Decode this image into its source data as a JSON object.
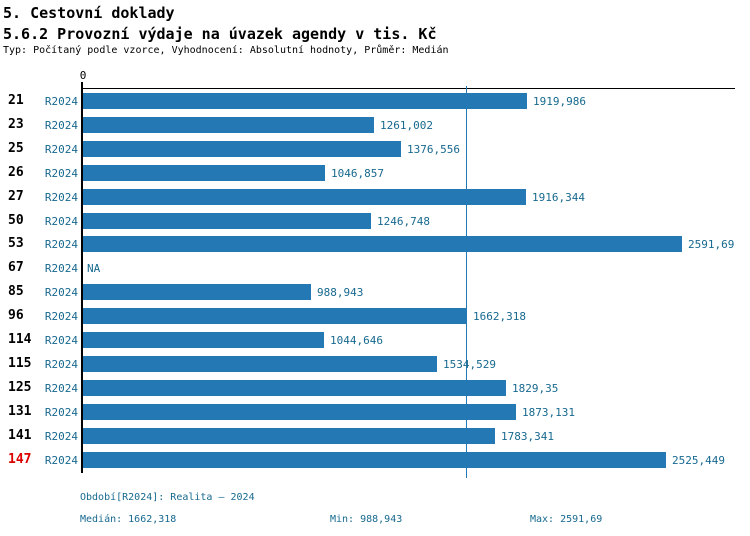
{
  "header": {
    "title": "5. Cestovní doklady",
    "subtitle": "5.6.2 Provozní výdaje na úvazek agendy v tis. Kč",
    "meta": "Typ: Počítaný podle vzorce, Vyhodnocení: Absolutní hodnoty, Průměr: Medián"
  },
  "chart_data": {
    "type": "bar",
    "orientation": "horizontal",
    "title": "5.6.2 Provozní výdaje na úvazek agendy v tis. Kč",
    "xlabel": "",
    "ylabel": "",
    "x_axis": {
      "origin_label": "0",
      "min": 0,
      "grid": false
    },
    "median_value": 1662.318,
    "min_value": 988.943,
    "max_value": 2591.69,
    "bar_color": "#2478b4",
    "categories": [
      "21",
      "23",
      "25",
      "26",
      "27",
      "50",
      "53",
      "67",
      "85",
      "96",
      "114",
      "115",
      "125",
      "131",
      "141",
      "147"
    ],
    "rows": [
      {
        "id": "21",
        "period": "R2024",
        "value": 1919.986,
        "value_label": "1919,986",
        "highlight": false
      },
      {
        "id": "23",
        "period": "R2024",
        "value": 1261.002,
        "value_label": "1261,002",
        "highlight": false
      },
      {
        "id": "25",
        "period": "R2024",
        "value": 1376.556,
        "value_label": "1376,556",
        "highlight": false
      },
      {
        "id": "26",
        "period": "R2024",
        "value": 1046.857,
        "value_label": "1046,857",
        "highlight": false
      },
      {
        "id": "27",
        "period": "R2024",
        "value": 1916.344,
        "value_label": "1916,344",
        "highlight": false
      },
      {
        "id": "50",
        "period": "R2024",
        "value": 1246.748,
        "value_label": "1246,748",
        "highlight": false
      },
      {
        "id": "53",
        "period": "R2024",
        "value": 2591.69,
        "value_label": "2591,69",
        "highlight": false
      },
      {
        "id": "67",
        "period": "R2024",
        "value": null,
        "value_label": "NA",
        "highlight": false
      },
      {
        "id": "85",
        "period": "R2024",
        "value": 988.943,
        "value_label": "988,943",
        "highlight": false
      },
      {
        "id": "96",
        "period": "R2024",
        "value": 1662.318,
        "value_label": "1662,318",
        "highlight": false
      },
      {
        "id": "114",
        "period": "R2024",
        "value": 1044.646,
        "value_label": "1044,646",
        "highlight": false
      },
      {
        "id": "115",
        "period": "R2024",
        "value": 1534.529,
        "value_label": "1534,529",
        "highlight": false
      },
      {
        "id": "125",
        "period": "R2024",
        "value": 1829.35,
        "value_label": "1829,35",
        "highlight": false
      },
      {
        "id": "131",
        "period": "R2024",
        "value": 1873.131,
        "value_label": "1873,131",
        "highlight": false
      },
      {
        "id": "141",
        "period": "R2024",
        "value": 1783.341,
        "value_label": "1783,341",
        "highlight": false
      },
      {
        "id": "147",
        "period": "R2024",
        "value": 2525.449,
        "value_label": "2525,449",
        "highlight": true
      }
    ]
  },
  "footer": {
    "period_line": "Období[R2024]: Realita – 2024",
    "median_label": "Medián: 1662,318",
    "min_label": "Min: 988,943",
    "max_label": "Max: 2591,69"
  },
  "colors": {
    "bar": "#2478b4",
    "accent_text": "#17698f",
    "highlight_row": "#dd0000",
    "axis": "#000000"
  }
}
